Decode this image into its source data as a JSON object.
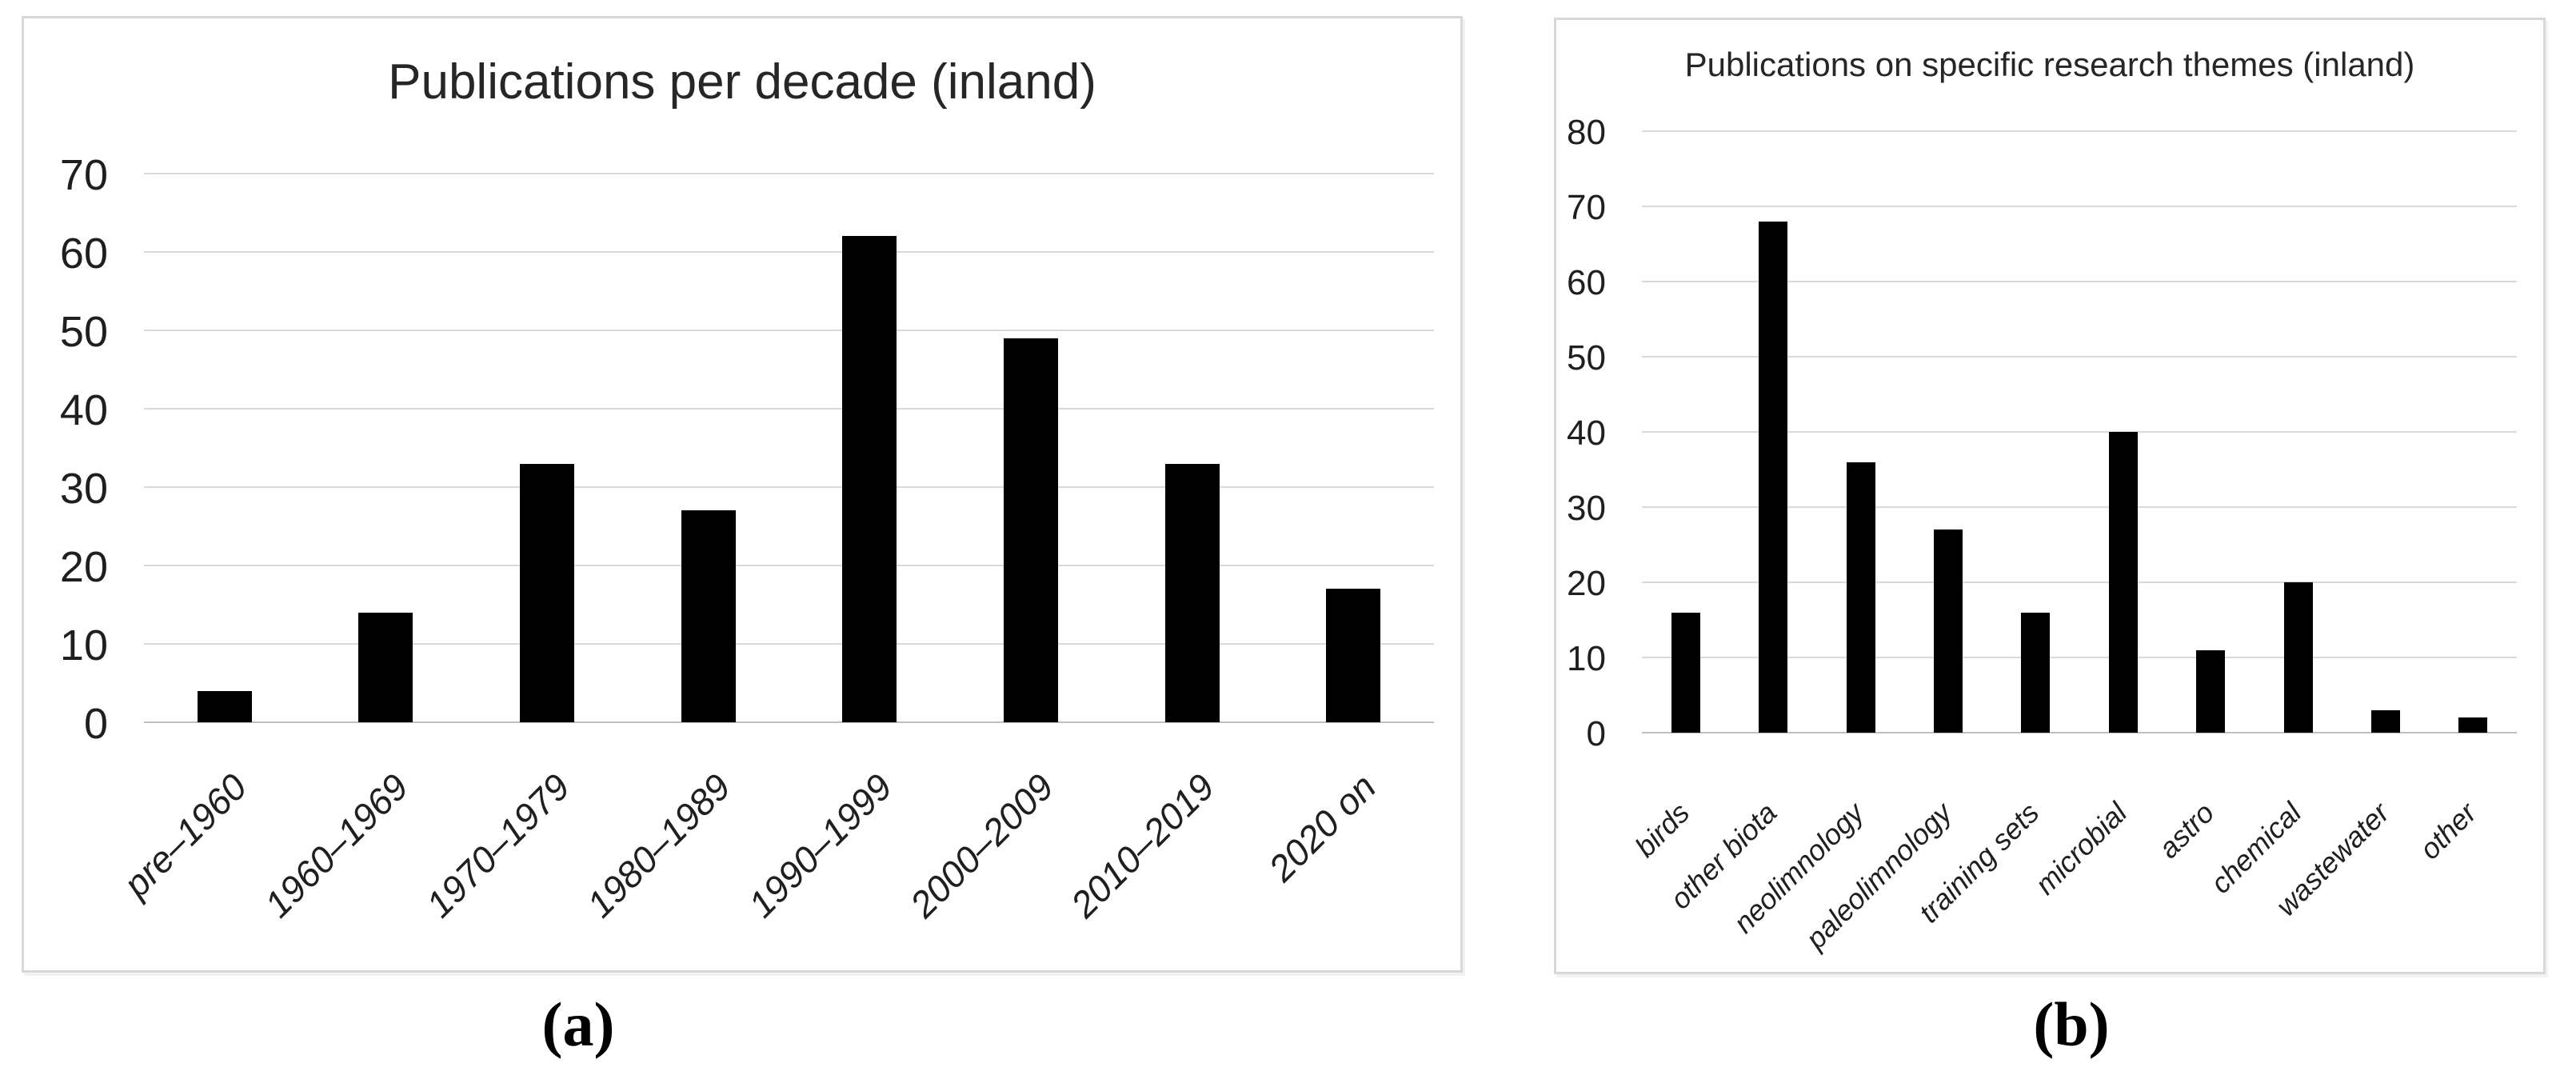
{
  "figure": {
    "background": "#ffffff",
    "panels": [
      {
        "caption": "(a)"
      },
      {
        "caption": "(b)"
      }
    ]
  },
  "chart_data": [
    {
      "type": "bar",
      "panel": "a",
      "title": "Publications per decade (inland)",
      "categories": [
        "pre–1960",
        "1960–1969",
        "1970–1979",
        "1980–1989",
        "1990–1999",
        "2000–2009",
        "2010–2019",
        "2020 on"
      ],
      "values": [
        4,
        14,
        33,
        27,
        62,
        49,
        33,
        17
      ],
      "xlabel": "",
      "ylabel": "",
      "ylim": [
        0,
        70
      ],
      "ytick_step": 10,
      "grid": true,
      "legend": "none",
      "bar_color": "#000000",
      "gridline_color": "#d9d9d9",
      "axis_color": "#bfbfbf",
      "text_color": "#1f1f1f"
    },
    {
      "type": "bar",
      "panel": "b",
      "title": "Publications on specific research themes (inland)",
      "categories": [
        "birds",
        "other biota",
        "neolimnology",
        "paleolimnology",
        "training sets",
        "microbial",
        "astro",
        "chemical",
        "wastewater",
        "other"
      ],
      "values": [
        16,
        68,
        36,
        27,
        16,
        40,
        11,
        20,
        3,
        2
      ],
      "xlabel": "",
      "ylabel": "",
      "ylim": [
        0,
        80
      ],
      "ytick_step": 10,
      "grid": true,
      "legend": "none",
      "bar_color": "#000000",
      "gridline_color": "#d9d9d9",
      "axis_color": "#bfbfbf",
      "text_color": "#1f1f1f"
    }
  ]
}
